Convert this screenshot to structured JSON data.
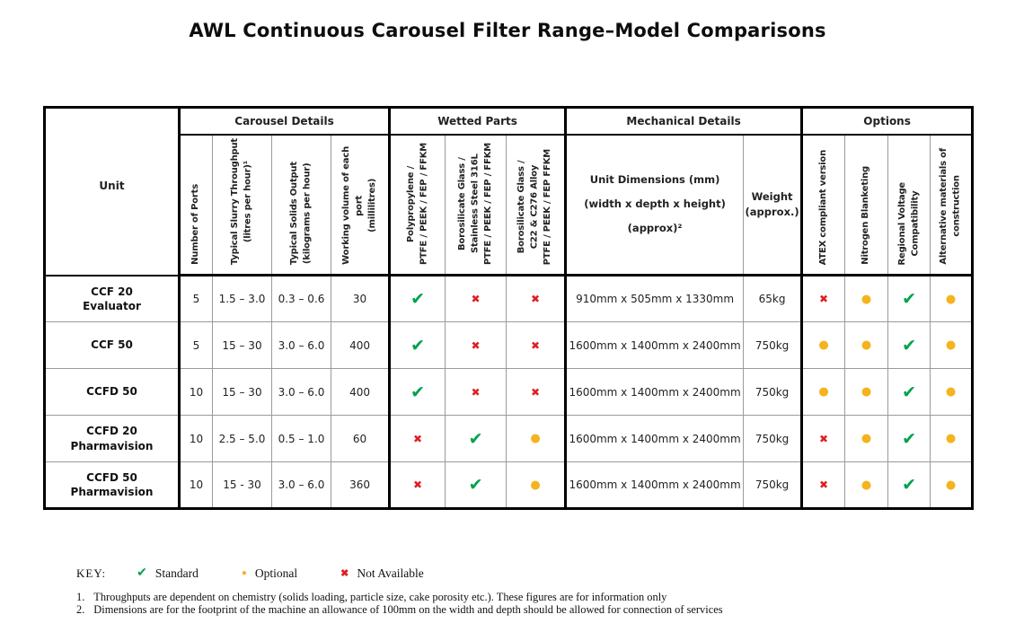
{
  "title": "AWL Continuous Carousel Filter Range–Model Comparisons",
  "table": {
    "unit_header": "Unit",
    "groups": [
      {
        "label": "Carousel Details"
      },
      {
        "label": "Wetted Parts"
      },
      {
        "label": "Mechanical Details"
      },
      {
        "label": "Options"
      }
    ],
    "columns": [
      {
        "label": "Number of Ports"
      },
      {
        "label": "Typical Slurry Throughput\n(litres per hour)¹"
      },
      {
        "label": "Typical Solids Output\n(kilograms per hour)"
      },
      {
        "label": "Working volume of each\nport\n(millilitres)"
      },
      {
        "label": "Polypropylene /\nPTFE / PEEK / FEP / FFKM"
      },
      {
        "label": "Borosilicate Glass /\nStainless Steel 316L\nPTFE / PEEK / FEP / FFKM"
      },
      {
        "label": "Borosilicate Glass /\nC22 & C276 Alloy\nPTFE / PEEK / FEP FFKM"
      },
      {
        "label": "Unit Dimensions (mm)\n(width x depth x height)\n(approx)²"
      },
      {
        "label": "Weight\n(approx.)"
      },
      {
        "label": "ATEX compliant version"
      },
      {
        "label": "Nitrogen Blanketing"
      },
      {
        "label": "Regional Voltage\nCompatibility"
      },
      {
        "label": "Alternative materials of\nconstruction"
      }
    ],
    "rows": [
      {
        "cells": [
          "CCF 20\nEvaluator",
          "5",
          "1.5 – 3.0",
          "0.3 – 0.6",
          "30",
          "standard",
          "na",
          "na",
          "910mm x 505mm x 1330mm",
          "65kg",
          "na",
          "optional",
          "standard",
          "optional"
        ]
      },
      {
        "cells": [
          "CCF 50",
          "5",
          "15 – 30",
          "3.0 – 6.0",
          "400",
          "standard",
          "na",
          "na",
          "1600mm x 1400mm x 2400mm",
          "750kg",
          "optional",
          "optional",
          "standard",
          "optional"
        ]
      },
      {
        "cells": [
          "CCFD 50",
          "10",
          "15 – 30",
          "3.0 – 6.0",
          "400",
          "standard",
          "na",
          "na",
          "1600mm x 1400mm x 2400mm",
          "750kg",
          "optional",
          "optional",
          "standard",
          "optional"
        ]
      },
      {
        "cells": [
          "CCFD 20\nPharmavision",
          "10",
          "2.5 – 5.0",
          "0.5 – 1.0",
          "60",
          "na",
          "standard",
          "optional",
          "1600mm x 1400mm x 2400mm",
          "750kg",
          "na",
          "optional",
          "standard",
          "optional"
        ]
      },
      {
        "cells": [
          "CCFD 50\nPharmavision",
          "10",
          "15 - 30",
          "3.0 – 6.0",
          "360",
          "na",
          "standard",
          "optional",
          "1600mm x 1400mm x 2400mm",
          "750kg",
          "na",
          "optional",
          "standard",
          "optional"
        ]
      }
    ]
  },
  "key": {
    "label": "KEY:",
    "symbols": {
      "standard": {
        "glyph": "✔",
        "color": "#00A24D",
        "icon_name": "standard-check-icon"
      },
      "optional": {
        "glyph": "●",
        "color": "#F5B41E",
        "icon_name": "optional-dot-icon"
      },
      "na": {
        "glyph": "✖",
        "color": "#E01E25",
        "icon_name": "not-available-cross-icon"
      }
    },
    "items": [
      {
        "symbol": "standard",
        "label": "Standard"
      },
      {
        "symbol": "optional",
        "label": "Optional"
      },
      {
        "symbol": "na",
        "label": "Not Available"
      }
    ]
  },
  "footnotes": [
    {
      "num": "1.",
      "text": "Throughputs are dependent on chemistry (solids loading, particle size, cake porosity etc.). These figures are for information only"
    },
    {
      "num": "2.",
      "text": "Dimensions are for the footprint of the machine an allowance of 100mm on the width and depth should be allowed for connection of services"
    }
  ]
}
